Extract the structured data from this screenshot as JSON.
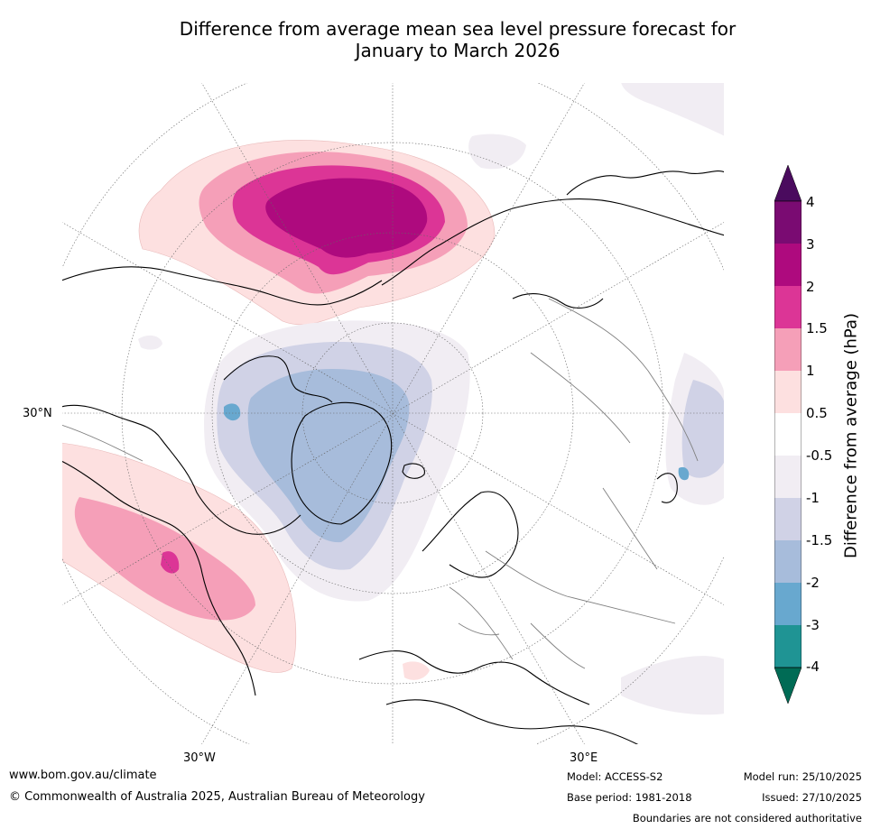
{
  "title": {
    "line1": "Difference from average mean sea level pressure forecast for",
    "line2": "January to March 2026"
  },
  "map": {
    "projection": "north-polar-stereographic",
    "lon_labels": [
      "30°N",
      "30°W",
      "30°E"
    ]
  },
  "legend": {
    "title": "Difference from average (hPa)",
    "ticks": [
      "4",
      "3",
      "2",
      "1.5",
      "1",
      "0.5",
      "-0.5",
      "-1",
      "-1.5",
      "-2",
      "-3",
      "-4"
    ],
    "colors": {
      "above_4": "#4a0b5e",
      "3_to_4": "#7a0b72",
      "2_to_3": "#ae0a7e",
      "1.5_to_2": "#dc3596",
      "1_to_1.5": "#f59fb8",
      "0.5_to_1": "#fde0e0",
      "-0.5_to_0.5": "#ffffff",
      "-1_to_-0.5": "#f1edf3",
      "-1.5_to_-1": "#d0d2e6",
      "-2_to_-1.5": "#a7bcdb",
      "-3_to_-2": "#68a8cf",
      "-4_to_-3": "#1f9494",
      "below_-4": "#006b55"
    }
  },
  "footer": {
    "url": "www.bom.gov.au/climate",
    "copyright": "© Commonwealth of Australia 2025, Australian Bureau of Meteorology",
    "model": "Model: ACCESS-S2",
    "base_period": "Base period: 1981-2018",
    "model_run": "Model run: 25/10/2025",
    "issued": "Issued: 27/10/2025",
    "disclaimer": "Boundaries are not considered authoritative"
  }
}
